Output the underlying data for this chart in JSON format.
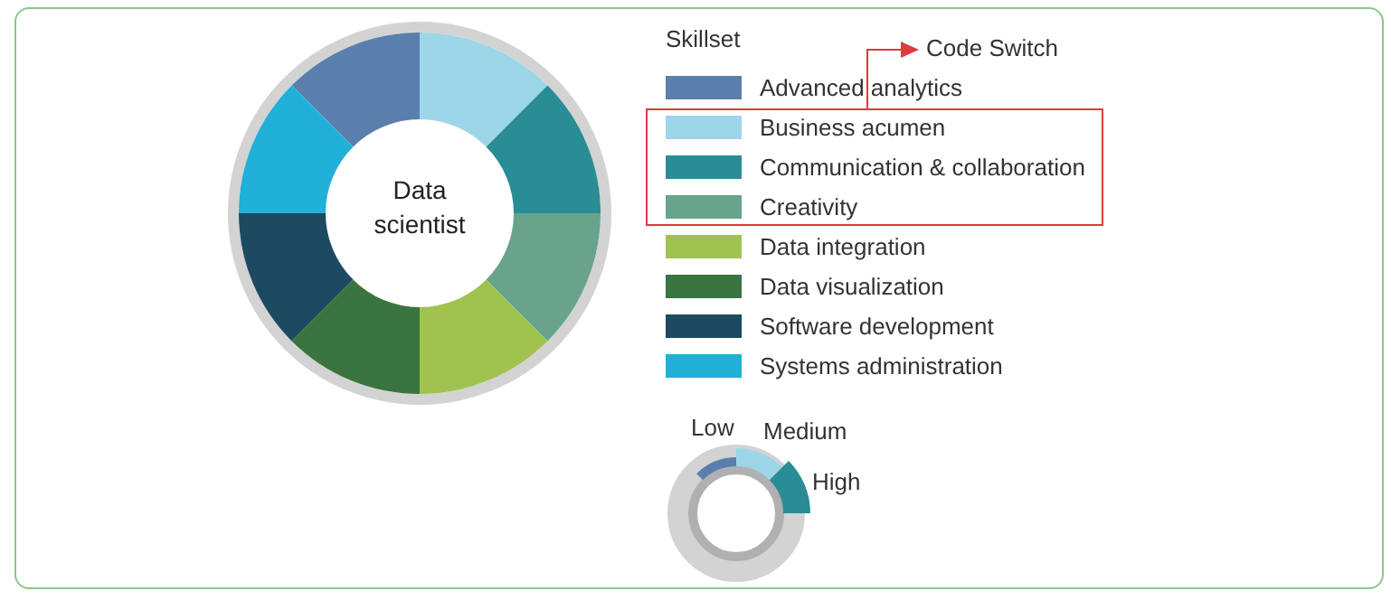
{
  "chart_data": {
    "type": "donut",
    "legend_title": "Skillset",
    "legend": "right",
    "categories": [
      "Advanced analytics",
      "Business acumen",
      "Communication & collaboration",
      "Creativity",
      "Data integration",
      "Data visualization",
      "Software development",
      "Systems administration"
    ],
    "values": [
      12.5,
      12.5,
      12.5,
      12.5,
      12.5,
      12.5,
      12.5,
      12.5
    ],
    "colors": [
      "#5b7fad",
      "#9dd6e8",
      "#2a8c94",
      "#68a38c",
      "#a0c350",
      "#3a7440",
      "#1d4a60",
      "#20b0d8"
    ],
    "annotations": [
      "Data scientist",
      "Code Switch",
      "Low",
      "Medium",
      "High"
    ]
  }
}
